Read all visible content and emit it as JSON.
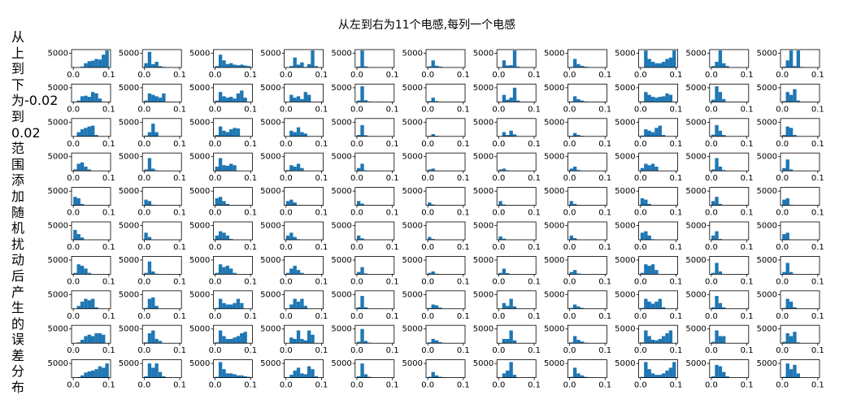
{
  "chart_data": {
    "type": "histogram",
    "title": "从左到右为11个电感,每列一个电感",
    "ylabel": "从上到下为-0.02到0.02范围添加随机扰动后产生的误差分布",
    "color": "#1f77b4",
    "bins": [
      0,
      0.01,
      0.02,
      0.03,
      0.04,
      0.05,
      0.06,
      0.07,
      0.08,
      0.09,
      0.1
    ],
    "xlim": [
      -0.005,
      0.105
    ],
    "xticks": [
      {
        "value": 0,
        "label": "0.0"
      },
      0.1
    ],
    "ylim": [
      0,
      6300
    ],
    "yticks": [
      5000
    ],
    "counts": [
      [
        [
          0,
          0,
          300,
          1500,
          2200,
          2400,
          3000,
          2800,
          4500,
          6000
        ],
        [
          1500,
          5500,
          1200,
          2000,
          500,
          200,
          100,
          0,
          0,
          0
        ],
        [
          500,
          4500,
          2500,
          1200,
          1500,
          1000,
          800,
          1000,
          700,
          500
        ],
        [
          0,
          500,
          3500,
          1000,
          1800,
          200,
          1200,
          6000,
          500,
          0
        ],
        [
          300,
          6000,
          400,
          100,
          0,
          0,
          0,
          0,
          0,
          0
        ],
        [
          400,
          2500,
          600,
          300,
          100,
          0,
          0,
          0,
          0,
          0
        ],
        [
          0,
          2500,
          700,
          800,
          6000,
          300,
          0,
          0,
          0,
          0
        ],
        [
          200,
          3000,
          1200,
          600,
          300,
          100,
          0,
          0,
          0,
          0
        ],
        [
          0,
          6000,
          3000,
          2000,
          1500,
          1500,
          2000,
          3000,
          3500,
          6000
        ],
        [
          500,
          2000,
          6000,
          1500,
          500,
          0,
          0,
          0,
          0,
          0
        ],
        [
          300,
          2500,
          6000,
          500,
          6000,
          200,
          0,
          0,
          0,
          0
        ]
      ],
      [
        [
          0,
          500,
          2000,
          2200,
          1800,
          3500,
          3000,
          1200,
          0,
          0
        ],
        [
          500,
          3000,
          2500,
          2000,
          1500,
          3000,
          0,
          0,
          0,
          0
        ],
        [
          500,
          3500,
          2000,
          1500,
          1800,
          1200,
          3000,
          4000,
          1500,
          0
        ],
        [
          0,
          2500,
          1500,
          2000,
          1000,
          3500,
          2500,
          0,
          0,
          0
        ],
        [
          500,
          5500,
          600,
          200,
          0,
          0,
          0,
          0,
          0,
          0
        ],
        [
          300,
          1500,
          300,
          100,
          0,
          0,
          0,
          0,
          0,
          0
        ],
        [
          0,
          2500,
          800,
          1500,
          5000,
          500,
          0,
          0,
          0,
          0
        ],
        [
          200,
          2000,
          1000,
          500,
          200,
          0,
          0,
          0,
          0,
          0
        ],
        [
          200,
          3500,
          2500,
          1800,
          1500,
          1800,
          2000,
          3000,
          2500,
          0
        ],
        [
          800,
          5500,
          3500,
          1000,
          0,
          0,
          0,
          0,
          0,
          0
        ],
        [
          300,
          3500,
          2500,
          4500,
          500,
          0,
          0,
          0,
          0,
          0
        ]
      ],
      [
        [
          0,
          1500,
          2500,
          3000,
          3500,
          3800,
          500,
          0,
          0,
          0
        ],
        [
          300,
          1500,
          4500,
          1500,
          0,
          0,
          0,
          0,
          0,
          0
        ],
        [
          500,
          3500,
          2000,
          1500,
          2500,
          3000,
          2800,
          0,
          0,
          0
        ],
        [
          0,
          2000,
          1500,
          3200,
          1500,
          1000,
          0,
          0,
          0,
          0
        ],
        [
          500,
          4000,
          400,
          100,
          0,
          0,
          0,
          0,
          0,
          0
        ],
        [
          200,
          800,
          200,
          0,
          0,
          0,
          0,
          0,
          0,
          0
        ],
        [
          0,
          1500,
          500,
          2000,
          700,
          0,
          0,
          0,
          0,
          0
        ],
        [
          200,
          1200,
          500,
          200,
          0,
          0,
          0,
          0,
          0,
          0
        ],
        [
          300,
          2500,
          2000,
          1500,
          3000,
          3800,
          500,
          0,
          0,
          0
        ],
        [
          600,
          4000,
          2000,
          500,
          0,
          0,
          0,
          0,
          0,
          0
        ],
        [
          500,
          3500,
          3000,
          500,
          0,
          0,
          0,
          0,
          0,
          0
        ]
      ],
      [
        [
          500,
          2500,
          3000,
          1500,
          500,
          0,
          0,
          0,
          0,
          0
        ],
        [
          500,
          4500,
          800,
          200,
          0,
          0,
          0,
          0,
          0,
          0
        ],
        [
          1500,
          4500,
          2000,
          1800,
          2500,
          2000,
          0,
          0,
          0,
          0
        ],
        [
          300,
          2000,
          1500,
          2500,
          1000,
          0,
          0,
          0,
          0,
          0
        ],
        [
          1000,
          2500,
          200,
          0,
          0,
          0,
          0,
          0,
          0,
          0
        ],
        [
          500,
          800,
          100,
          0,
          0,
          0,
          0,
          0,
          0,
          0
        ],
        [
          500,
          800,
          200,
          0,
          0,
          0,
          0,
          0,
          0,
          0
        ],
        [
          800,
          1500,
          300,
          100,
          0,
          0,
          0,
          0,
          0,
          0
        ],
        [
          1000,
          2500,
          2000,
          2500,
          1500,
          0,
          0,
          0,
          0,
          0
        ],
        [
          500,
          4500,
          1500,
          300,
          0,
          0,
          0,
          0,
          0,
          0
        ],
        [
          1000,
          4000,
          500,
          0,
          0,
          0,
          0,
          0,
          0,
          0
        ]
      ],
      [
        [
          3000,
          2500,
          500,
          0,
          0,
          0,
          0,
          0,
          0,
          0
        ],
        [
          2000,
          1500,
          200,
          0,
          0,
          0,
          0,
          0,
          0,
          0
        ],
        [
          2500,
          3000,
          1500,
          500,
          0,
          0,
          0,
          0,
          0,
          0
        ],
        [
          1500,
          2000,
          1000,
          0,
          0,
          0,
          0,
          0,
          0,
          0
        ],
        [
          1500,
          600,
          0,
          0,
          0,
          0,
          0,
          0,
          0,
          0
        ],
        [
          1000,
          300,
          0,
          0,
          0,
          0,
          0,
          0,
          0,
          0
        ],
        [
          1500,
          300,
          0,
          0,
          0,
          0,
          0,
          0,
          0,
          0
        ],
        [
          1500,
          500,
          100,
          0,
          0,
          0,
          0,
          0,
          0,
          0
        ],
        [
          2500,
          2000,
          500,
          0,
          0,
          0,
          0,
          0,
          0,
          0
        ],
        [
          1500,
          3000,
          500,
          0,
          0,
          0,
          0,
          0,
          0,
          0
        ],
        [
          2000,
          2500,
          200,
          0,
          0,
          0,
          0,
          0,
          0,
          0
        ]
      ],
      [
        [
          3500,
          2000,
          800,
          0,
          0,
          0,
          0,
          0,
          0,
          0
        ],
        [
          2500,
          1000,
          100,
          0,
          0,
          0,
          0,
          0,
          0,
          0
        ],
        [
          1500,
          3000,
          2500,
          1500,
          300,
          0,
          0,
          0,
          0,
          0
        ],
        [
          1500,
          2500,
          1000,
          200,
          0,
          0,
          0,
          0,
          0,
          0
        ],
        [
          1500,
          500,
          0,
          0,
          0,
          0,
          0,
          0,
          0,
          0
        ],
        [
          1000,
          300,
          0,
          0,
          0,
          0,
          0,
          0,
          0,
          0
        ],
        [
          1200,
          400,
          0,
          0,
          0,
          0,
          0,
          0,
          0,
          0
        ],
        [
          1500,
          600,
          100,
          0,
          0,
          0,
          0,
          0,
          0,
          0
        ],
        [
          2500,
          3000,
          1500,
          200,
          0,
          0,
          0,
          0,
          0,
          0
        ],
        [
          1500,
          3000,
          300,
          0,
          0,
          0,
          0,
          0,
          0,
          0
        ],
        [
          2000,
          2500,
          100,
          0,
          0,
          0,
          0,
          0,
          0,
          0
        ]
      ],
      [
        [
          500,
          3500,
          3000,
          2000,
          500,
          0,
          0,
          0,
          0,
          0
        ],
        [
          500,
          4500,
          1000,
          200,
          0,
          0,
          0,
          0,
          0,
          0
        ],
        [
          500,
          3500,
          2500,
          3000,
          2000,
          500,
          0,
          0,
          0,
          0
        ],
        [
          500,
          2000,
          3000,
          1500,
          500,
          0,
          0,
          0,
          0,
          0
        ],
        [
          800,
          2500,
          300,
          0,
          0,
          0,
          0,
          0,
          0,
          0
        ],
        [
          500,
          1000,
          200,
          0,
          0,
          0,
          0,
          0,
          0,
          0
        ],
        [
          500,
          2000,
          400,
          0,
          0,
          0,
          0,
          0,
          0,
          0
        ],
        [
          800,
          1500,
          300,
          0,
          0,
          0,
          0,
          0,
          0,
          0
        ],
        [
          500,
          3500,
          3000,
          3500,
          1500,
          0,
          0,
          0,
          0,
          0
        ],
        [
          500,
          4000,
          1000,
          0,
          0,
          0,
          0,
          0,
          0,
          0
        ],
        [
          800,
          4000,
          800,
          0,
          0,
          0,
          0,
          0,
          0,
          0
        ]
      ],
      [
        [
          0,
          1000,
          2500,
          3500,
          3000,
          3500,
          500,
          0,
          0,
          0
        ],
        [
          300,
          3500,
          4000,
          1000,
          0,
          0,
          0,
          0,
          0,
          0
        ],
        [
          300,
          3500,
          2000,
          1500,
          1500,
          2000,
          3500,
          2000,
          0,
          0
        ],
        [
          0,
          1500,
          3500,
          2500,
          3500,
          1000,
          0,
          0,
          0,
          0
        ],
        [
          500,
          4500,
          500,
          100,
          0,
          0,
          0,
          0,
          0,
          0
        ],
        [
          300,
          1500,
          1200,
          400,
          100,
          0,
          0,
          0,
          0,
          0
        ],
        [
          0,
          2000,
          1000,
          3500,
          800,
          0,
          0,
          0,
          0,
          0
        ],
        [
          300,
          1500,
          800,
          300,
          100,
          0,
          0,
          0,
          0,
          0
        ],
        [
          300,
          3500,
          2500,
          1800,
          2500,
          3500,
          500,
          0,
          0,
          0
        ],
        [
          500,
          4500,
          2000,
          500,
          0,
          0,
          0,
          0,
          0,
          0
        ],
        [
          300,
          3500,
          2500,
          500,
          100,
          0,
          0,
          0,
          0,
          0
        ]
      ],
      [
        [
          0,
          300,
          1200,
          2500,
          3000,
          2500,
          3500,
          3500,
          3000,
          0
        ],
        [
          300,
          3500,
          4500,
          1500,
          800,
          0,
          0,
          0,
          0,
          0
        ],
        [
          300,
          4500,
          2500,
          1500,
          1500,
          2000,
          2500,
          3500,
          4000,
          0
        ],
        [
          0,
          2000,
          1500,
          4500,
          1500,
          1000,
          4500,
          3000,
          0,
          0
        ],
        [
          500,
          5000,
          800,
          200,
          0,
          0,
          0,
          0,
          0,
          0
        ],
        [
          300,
          1500,
          1000,
          400,
          100,
          0,
          0,
          0,
          0,
          0
        ],
        [
          0,
          1500,
          1500,
          4500,
          1000,
          0,
          0,
          0,
          0,
          0
        ],
        [
          300,
          2500,
          1200,
          600,
          200,
          100,
          0,
          0,
          0,
          0
        ],
        [
          300,
          4500,
          2500,
          1200,
          1000,
          1500,
          2500,
          3500,
          4500,
          0
        ],
        [
          500,
          4500,
          2500,
          2500,
          0,
          0,
          0,
          0,
          0,
          0
        ],
        [
          500,
          3500,
          2500,
          4000,
          300,
          0,
          0,
          0,
          0,
          0
        ]
      ],
      [
        [
          0,
          200,
          800,
          1800,
          2200,
          2500,
          3000,
          4000,
          3500,
          5000
        ],
        [
          500,
          5000,
          3500,
          5000,
          2000,
          500,
          0,
          0,
          0,
          0
        ],
        [
          300,
          5500,
          3000,
          1500,
          1500,
          1200,
          800,
          800,
          500,
          300
        ],
        [
          0,
          1000,
          2500,
          3500,
          1500,
          1200,
          4000,
          3000,
          500,
          0
        ],
        [
          500,
          5000,
          1200,
          300,
          0,
          0,
          0,
          0,
          0,
          0
        ],
        [
          300,
          2000,
          800,
          300,
          100,
          0,
          0,
          0,
          0,
          0
        ],
        [
          0,
          1500,
          2500,
          5500,
          1000,
          0,
          0,
          0,
          0,
          0
        ],
        [
          300,
          3500,
          1500,
          800,
          300,
          100,
          0,
          0,
          0,
          0
        ],
        [
          300,
          5500,
          3000,
          1500,
          1000,
          1000,
          1500,
          2500,
          3500,
          5500
        ],
        [
          500,
          4500,
          4000,
          2000,
          500,
          0,
          0,
          0,
          0,
          0
        ],
        [
          300,
          5000,
          3000,
          4500,
          1500,
          0,
          0,
          0,
          0,
          0
        ]
      ]
    ]
  }
}
